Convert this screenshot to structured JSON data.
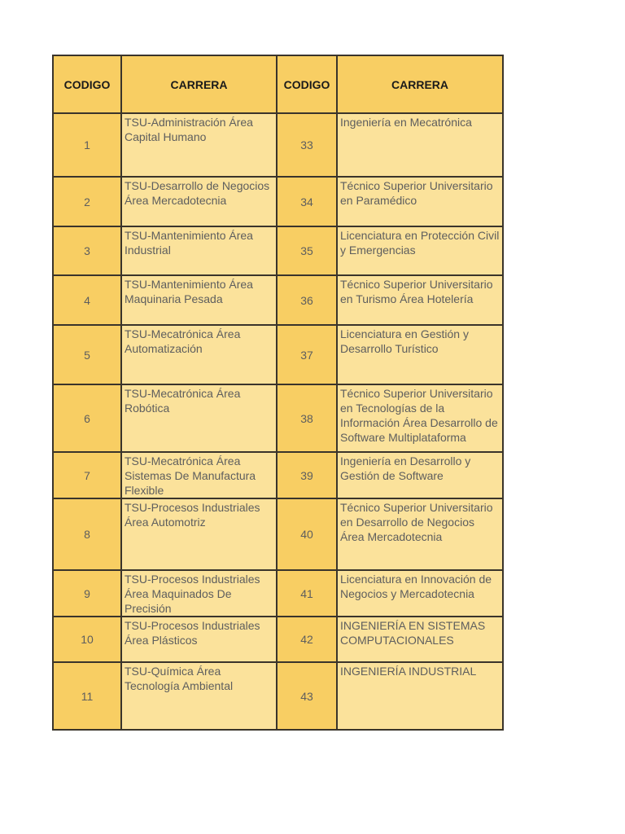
{
  "page": {
    "background_color": "#FFFFFF"
  },
  "table": {
    "colors": {
      "code_cell_bg": "#F8CE63",
      "career_cell_bg": "#FBE29B",
      "border": "#3A342B",
      "header_text": "#1A1A1A",
      "body_text": "#5E5E5E"
    },
    "headers": [
      "CODIGO",
      "CARRERA",
      "CODIGO",
      "CARRERA"
    ],
    "rows": [
      {
        "code_left": "1",
        "career_left": "TSU-Administración Área Capital Humano",
        "code_right": "33",
        "career_right": "Ingeniería en Mecatrónica"
      },
      {
        "code_left": "2",
        "career_left": "TSU-Desarrollo de Negocios Área Mercadotecnia",
        "code_right": "34",
        "career_right": "Técnico Superior Universitario en Paramédico"
      },
      {
        "code_left": "3",
        "career_left": "TSU-Mantenimiento Área Industrial",
        "code_right": "35",
        "career_right": "Licenciatura en Protección Civil y Emergencias"
      },
      {
        "code_left": "4",
        "career_left": "TSU-Mantenimiento Área Maquinaria Pesada",
        "code_right": "36",
        "career_right": "Técnico Superior Universitario en Turismo Área Hotelería"
      },
      {
        "code_left": "5",
        "career_left": "TSU-Mecatrónica Área Automatización",
        "code_right": "37",
        "career_right": "Licenciatura en Gestión y Desarrollo Turístico"
      },
      {
        "code_left": "6",
        "career_left": "TSU-Mecatrónica Área Robótica",
        "code_right": "38",
        "career_right": "Técnico Superior Universitario en Tecnologías de la Información Área Desarrollo de Software Multiplataforma"
      },
      {
        "code_left": "7",
        "career_left": "TSU-Mecatrónica Área Sistemas De Manufactura Flexible",
        "code_right": "39",
        "career_right": "Ingeniería en Desarrollo y Gestión de Software"
      },
      {
        "code_left": "8",
        "career_left": "TSU-Procesos Industriales Área Automotriz",
        "code_right": "40",
        "career_right": "Técnico Superior Universitario en Desarrollo de Negocios Área Mercadotecnia"
      },
      {
        "code_left": "9",
        "career_left": "TSU-Procesos Industriales Área Maquinados De Precisión",
        "code_right": "41",
        "career_right": "Licenciatura en Innovación de Negocios y Mercadotecnia"
      },
      {
        "code_left": "10",
        "career_left": "TSU-Procesos Industriales Área Plásticos",
        "code_right": "42",
        "career_right": "INGENIERÍA EN SISTEMAS COMPUTACIONALES"
      },
      {
        "code_left": "11",
        "career_left": "TSU-Química Área Tecnología Ambiental",
        "code_right": "43",
        "career_right": "INGENIERÍA INDUSTRIAL"
      }
    ]
  }
}
